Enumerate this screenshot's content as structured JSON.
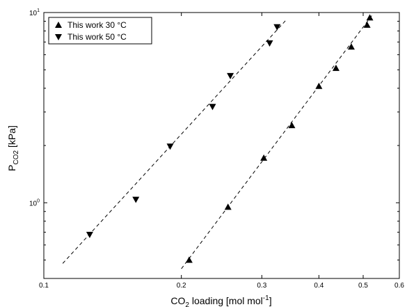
{
  "chart_data": {
    "type": "scatter",
    "title": "",
    "x_scale": "log",
    "y_scale": "log",
    "xlim": [
      0.1,
      0.6
    ],
    "ylim": [
      0.4,
      10
    ],
    "grid": false,
    "legend_position": "top-left",
    "xlabel": {
      "main": "CO",
      "sub": "2",
      "rest": " loading [mol mol",
      "sup": "-1",
      "end": "]"
    },
    "ylabel": {
      "main": "P",
      "sub": "CO2",
      "rest": " [kPa]"
    },
    "x_ticks": [
      {
        "value": 0.1,
        "label": "0.1"
      },
      {
        "value": 0.2,
        "label": "0.2"
      },
      {
        "value": 0.3,
        "label": "0.3"
      },
      {
        "value": 0.4,
        "label": "0.4"
      },
      {
        "value": 0.5,
        "label": "0.5"
      },
      {
        "value": 0.6,
        "label": "0.6"
      }
    ],
    "y_ticks": [
      {
        "value": 1,
        "base": "10",
        "exp": "0"
      },
      {
        "value": 10,
        "base": "10",
        "exp": "1"
      }
    ],
    "series": [
      {
        "name": "This work 30 °C",
        "marker": "triangle-up",
        "color": "#000000",
        "points": [
          {
            "x": 0.208,
            "y": 0.5
          },
          {
            "x": 0.253,
            "y": 0.95
          },
          {
            "x": 0.303,
            "y": 1.72
          },
          {
            "x": 0.349,
            "y": 2.55
          },
          {
            "x": 0.4,
            "y": 4.1
          },
          {
            "x": 0.436,
            "y": 5.1
          },
          {
            "x": 0.471,
            "y": 6.6
          },
          {
            "x": 0.51,
            "y": 8.6
          },
          {
            "x": 0.517,
            "y": 9.4
          }
        ],
        "fit_line": [
          {
            "x": 0.2,
            "y": 0.45
          },
          {
            "x": 0.525,
            "y": 9.8
          }
        ]
      },
      {
        "name": "This work 50 °C",
        "marker": "triangle-down",
        "color": "#000000",
        "points": [
          {
            "x": 0.126,
            "y": 0.68
          },
          {
            "x": 0.159,
            "y": 1.04
          },
          {
            "x": 0.189,
            "y": 1.98
          },
          {
            "x": 0.234,
            "y": 3.2
          },
          {
            "x": 0.256,
            "y": 4.65
          },
          {
            "x": 0.312,
            "y": 6.9
          },
          {
            "x": 0.324,
            "y": 8.4
          }
        ],
        "fit_line": [
          {
            "x": 0.11,
            "y": 0.48
          },
          {
            "x": 0.34,
            "y": 9.2
          }
        ]
      }
    ]
  }
}
